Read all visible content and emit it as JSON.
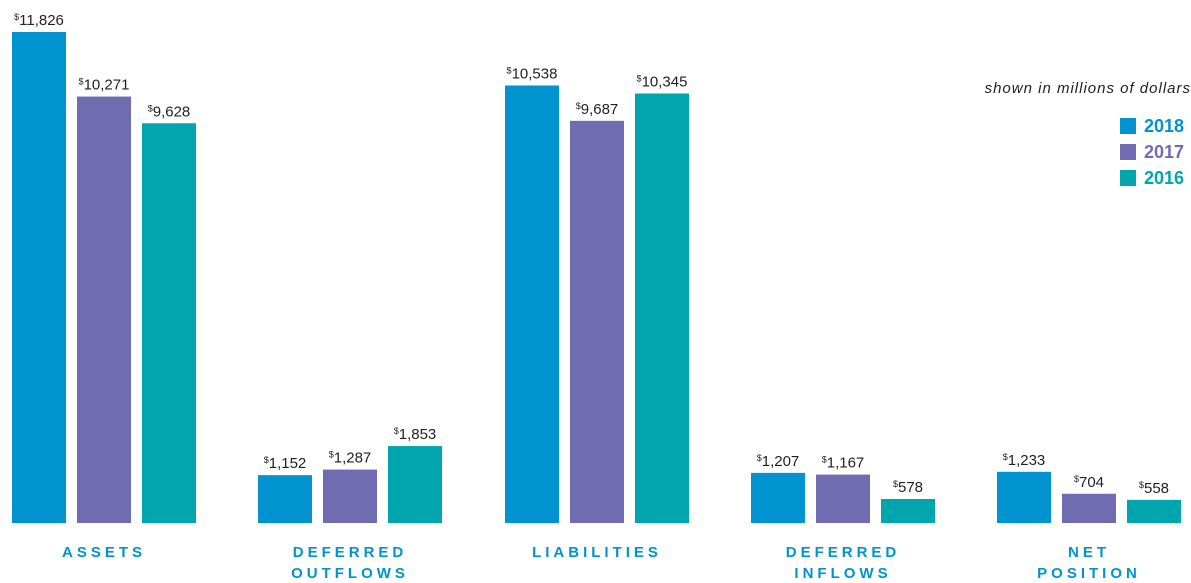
{
  "legend_note": "shown in millions of dollars",
  "currency_symbol": "$",
  "colors": {
    "2018": "#0093d0",
    "2017": "#6f6cb2",
    "2016": "#00a5ae",
    "category_label": "#0093d0",
    "value_label": "#231f20"
  },
  "chart_data": {
    "type": "bar",
    "title": "",
    "xlabel": "",
    "ylabel": "",
    "categories": [
      [
        "ASSETS"
      ],
      [
        "DEFERRED",
        "OUTFLOWS"
      ],
      [
        "LIABILITIES"
      ],
      [
        "DEFERRED",
        "INFLOWS"
      ],
      [
        "NET",
        "POSITION"
      ]
    ],
    "series": [
      {
        "name": "2018",
        "values": [
          11826,
          1152,
          10538,
          1207,
          1233
        ],
        "labels": [
          "11,826",
          "1,152",
          "10,538",
          "1,207",
          "1,233"
        ]
      },
      {
        "name": "2017",
        "values": [
          10271,
          1287,
          9687,
          1167,
          704
        ],
        "labels": [
          "10,271",
          "1,287",
          "9,687",
          "1,167",
          "704"
        ]
      },
      {
        "name": "2016",
        "values": [
          9628,
          1853,
          10345,
          578,
          558
        ],
        "labels": [
          "9,628",
          "1,853",
          "10,345",
          "578",
          "558"
        ]
      }
    ],
    "ylim": [
      0,
      11826
    ],
    "grid": false,
    "legend_position": "top-right"
  }
}
